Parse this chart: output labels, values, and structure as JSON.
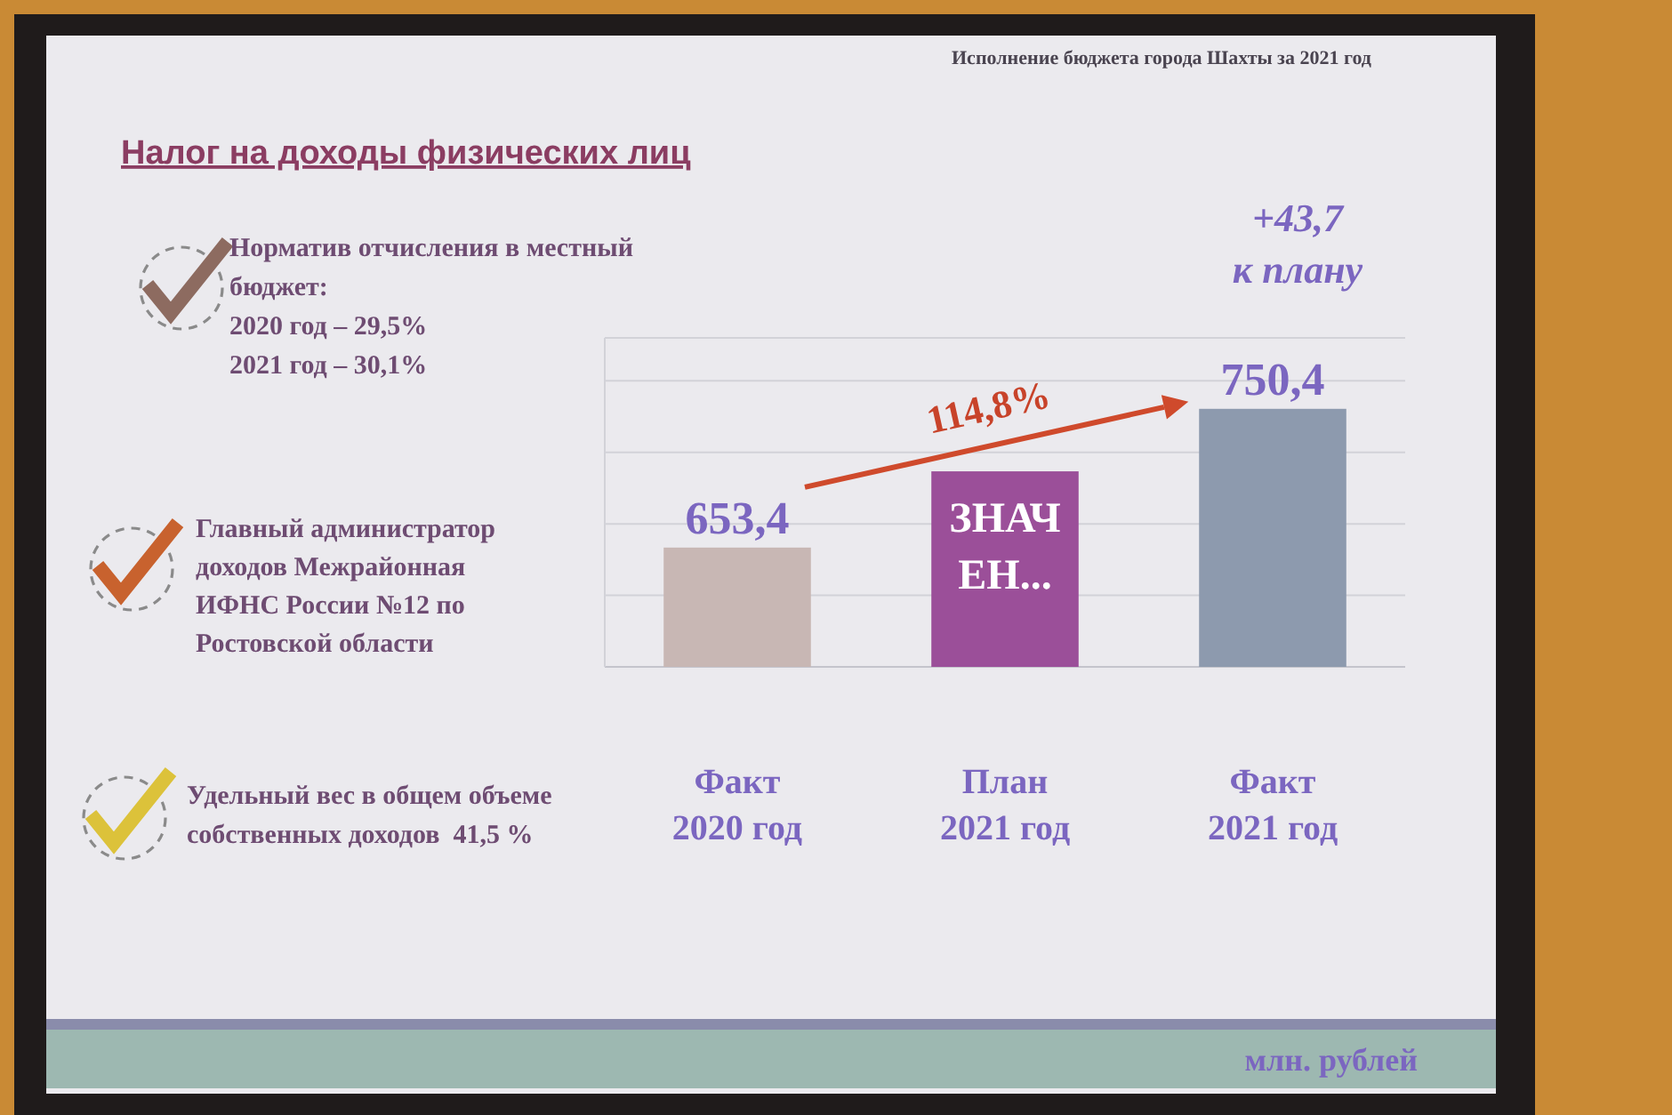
{
  "chart_data": {
    "type": "bar",
    "title": "Налог на доходы физических лиц",
    "subtitle": "Исполнение бюджета города Шахты за 2021 год",
    "categories": [
      "Факт\n2020 год",
      "План\n2021 год",
      "Факт\n2021 год"
    ],
    "values": [
      653.4,
      706.7,
      750.4
    ],
    "colors": [
      "#c8b7b4",
      "#9b4f99",
      "#8d9aae"
    ],
    "value_labels": [
      "653,4",
      "ЗНАЧ ЕН...",
      "750,4"
    ],
    "ylim": [
      570,
      800
    ],
    "yticks": [
      {
        "value": 620,
        "label": null
      },
      {
        "value": 670,
        "label": null
      },
      {
        "value": 720,
        "label": null
      },
      {
        "value": 770,
        "label": null
      }
    ],
    "grid": true,
    "tick_labels": "x",
    "annotations": [
      "Норматив отчисления в местный\nбюджет:\n2020 год – 29,5%\n2021 год – 30,1%",
      "Главный администратор\nдоходов Межрайонная\nИФНС России №12 по\nРостовской области",
      "Удельный вес в общем объеме\nсобственных доходов  41,5 %",
      {
        "text": "+43,7\nк плану",
        "x": "Факт\n2021 год",
        "y": 750.4
      },
      "114,8%",
      "млн. рублей"
    ]
  }
}
